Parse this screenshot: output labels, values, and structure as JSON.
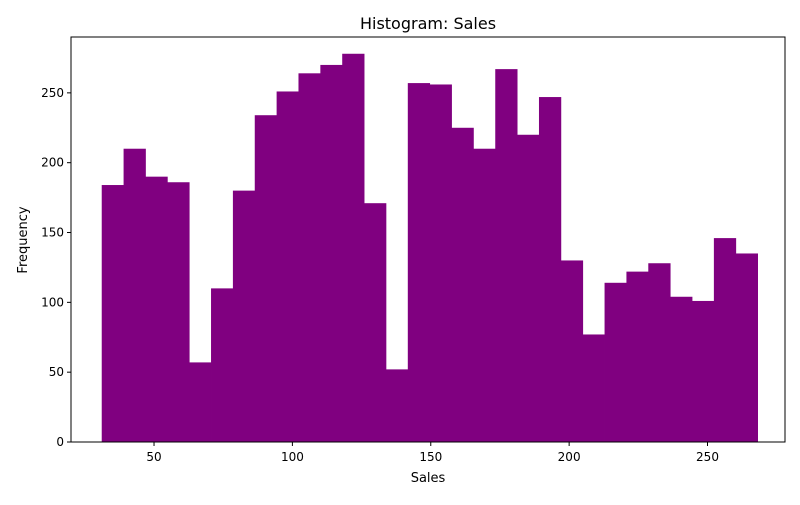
{
  "chart_data": {
    "type": "bar",
    "title": "Histogram: Sales",
    "xlabel": "Sales",
    "ylabel": "Frequency",
    "bar_color": "#800080",
    "xlim": [
      20,
      278
    ],
    "ylim": [
      0,
      290
    ],
    "xticks": [
      50,
      100,
      150,
      200,
      250
    ],
    "yticks": [
      0,
      50,
      100,
      150,
      200,
      250
    ],
    "bin_edges": [
      31.1,
      39.0,
      46.9,
      54.8,
      62.7,
      70.6,
      78.5,
      86.4,
      94.3,
      102.2,
      110.1,
      118.0,
      125.9,
      133.8,
      141.7,
      149.6,
      157.5,
      165.4,
      173.3,
      181.2,
      189.1,
      197.0,
      204.9,
      212.8,
      220.7,
      228.6,
      236.5,
      244.4,
      252.3,
      260.2,
      268.1
    ],
    "values": [
      184,
      210,
      190,
      186,
      57,
      110,
      180,
      234,
      251,
      264,
      270,
      278,
      171,
      52,
      257,
      256,
      225,
      210,
      267,
      220,
      247,
      130,
      77,
      114,
      122,
      128,
      104,
      101,
      146,
      135
    ]
  }
}
